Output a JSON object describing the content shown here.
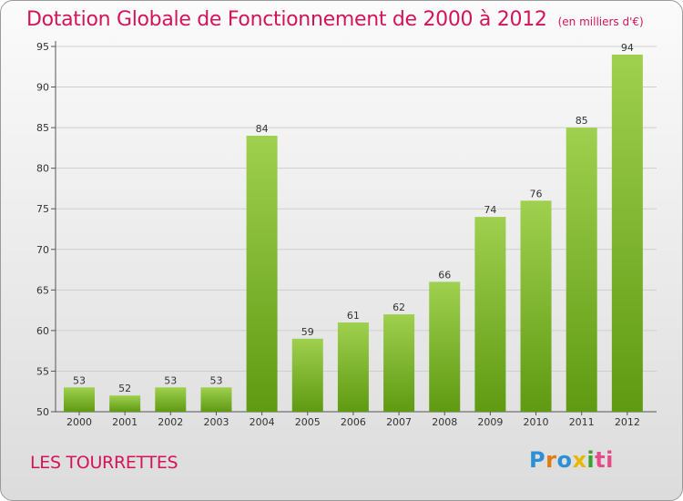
{
  "title": "Dotation Globale de Fonctionnement de 2000 à 2012",
  "unit_note": "(en milliers d'€)",
  "commune": "LES TOURRETTES",
  "brand": {
    "p1": "P",
    "p2": "r",
    "p3": "o",
    "p4": "x",
    "p5": "i",
    "p6": "ti"
  },
  "colors": {
    "title": "#d4145a",
    "bar_light": "#9fd04f",
    "bar_dark": "#5f9a12",
    "grid": "#cfcfcf"
  },
  "chart_data": {
    "type": "bar",
    "categories": [
      "2000",
      "2001",
      "2002",
      "2003",
      "2004",
      "2005",
      "2006",
      "2007",
      "2008",
      "2009",
      "2010",
      "2011",
      "2012"
    ],
    "values": [
      53,
      52,
      53,
      53,
      84,
      59,
      61,
      62,
      66,
      74,
      76,
      85,
      94
    ],
    "ylim": [
      50,
      95
    ],
    "yticks": [
      50,
      55,
      60,
      65,
      70,
      75,
      80,
      85,
      90,
      95
    ],
    "grid": true,
    "xlabel": "",
    "ylabel": ""
  }
}
